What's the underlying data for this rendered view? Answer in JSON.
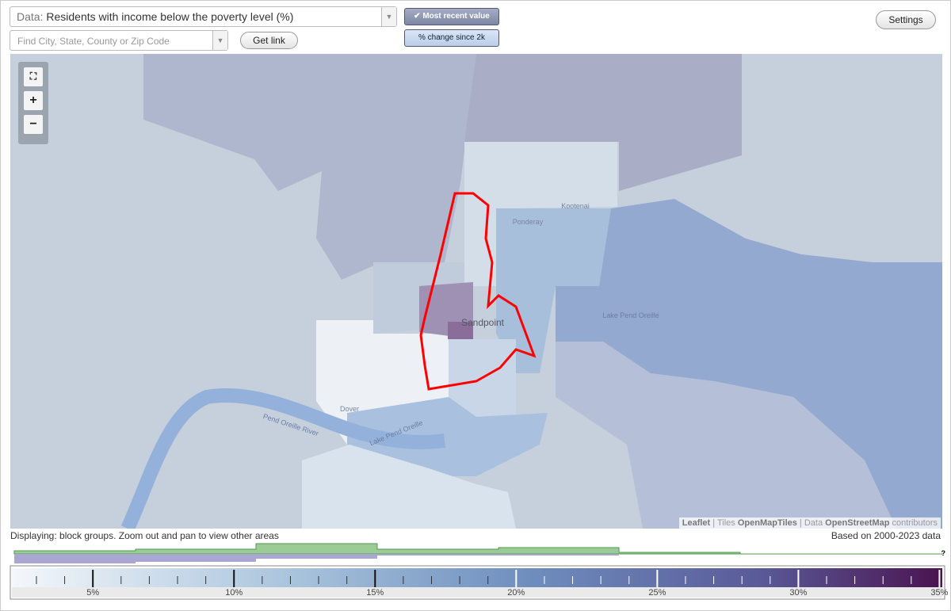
{
  "header": {
    "data_label": "Data:",
    "data_value": "Residents with income below the poverty level (%)",
    "search_placeholder": "Find City, State, County or Zip Code",
    "get_link": "Get link",
    "mode_buttons": [
      "Most recent value",
      "% change since 2k"
    ],
    "settings": "Settings"
  },
  "map": {
    "places": [
      "Kootenai",
      "Ponderay",
      "Sandpoint",
      "Lake Pend Oreille",
      "Dover",
      "Pend Oreille River",
      "Lake Pend Oreille"
    ],
    "attribution": {
      "leaflet": "Leaflet",
      "tiles_prefix": "Tiles",
      "tiles": "OpenMapTiles",
      "data_prefix": "Data",
      "data": "OpenStreetMap",
      "suffix": "contributors"
    }
  },
  "footer": {
    "displaying": "Displaying: block groups. Zoom out and pan to view other areas",
    "based_on": "Based on 2000-2023 data",
    "help": "?"
  },
  "legend": {
    "range": [
      2.13,
      35.1
    ],
    "ticks": [
      {
        "value": 5,
        "label": "5%"
      },
      {
        "value": 10,
        "label": "10%"
      },
      {
        "value": 15,
        "label": "15%"
      },
      {
        "value": 20,
        "label": "20%"
      },
      {
        "value": 25,
        "label": "25%"
      },
      {
        "value": 30,
        "label": "30%"
      },
      {
        "value": 35,
        "label": "35%"
      }
    ]
  }
}
